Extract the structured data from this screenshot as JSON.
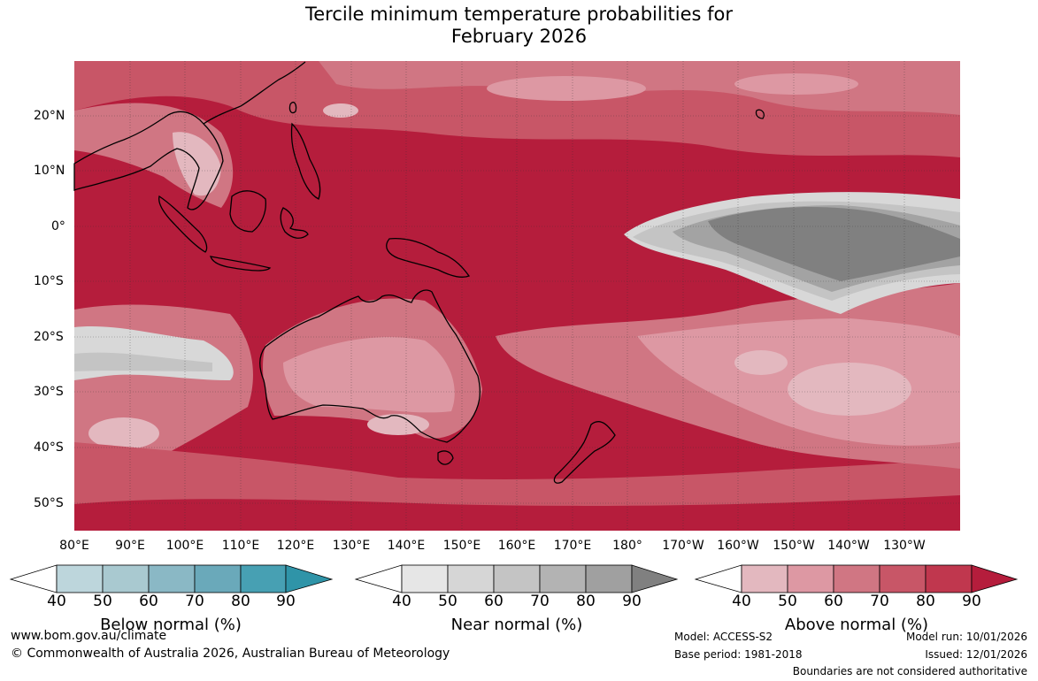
{
  "title_line1": "Tercile minimum temperature probabilities for",
  "title_line2": "February 2026",
  "map": {
    "longitude_labels": [
      "80°E",
      "90°E",
      "100°E",
      "110°E",
      "120°E",
      "130°E",
      "140°E",
      "150°E",
      "160°E",
      "170°E",
      "180°",
      "170°W",
      "160°W",
      "150°W",
      "140°W",
      "130°W"
    ],
    "latitude_labels": [
      "20°N",
      "10°N",
      "0°",
      "10°S",
      "20°S",
      "30°S",
      "40°S",
      "50°S"
    ],
    "colors": {
      "above_90": "#b51d3c",
      "above_80": "#c0374e",
      "above_70": "#c85667",
      "above_60": "#d07683",
      "above_50": "#dd98a3",
      "above_40": "#e3b8bf",
      "near_80": "#808080",
      "near_60": "#a3a3a3",
      "near_50": "#c4c4c4",
      "near_40": "#d8d8d8"
    }
  },
  "colorbars": [
    {
      "title": "Below normal (%)",
      "ticks": [
        "40",
        "50",
        "60",
        "70",
        "80",
        "90"
      ],
      "colors": [
        "#ffffff",
        "#bdd6dc",
        "#a9c9d0",
        "#8ab8c5",
        "#6aa9ba",
        "#47a0b3",
        "#2f94a8"
      ]
    },
    {
      "title": "Near normal (%)",
      "ticks": [
        "40",
        "50",
        "60",
        "70",
        "80",
        "90"
      ],
      "colors": [
        "#ffffff",
        "#e6e6e6",
        "#d6d6d6",
        "#c4c4c4",
        "#b3b3b3",
        "#a0a0a0",
        "#808080"
      ]
    },
    {
      "title": "Above normal (%)",
      "ticks": [
        "40",
        "50",
        "60",
        "70",
        "80",
        "90"
      ],
      "colors": [
        "#ffffff",
        "#e3b8bf",
        "#dd98a3",
        "#d07683",
        "#c85667",
        "#c0374e",
        "#b51d3c"
      ]
    }
  ],
  "footer": {
    "website": "www.bom.gov.au/climate",
    "copyright": "© Commonwealth of Australia 2026, Australian Bureau of Meteorology",
    "model": "Model: ACCESS-S2",
    "base_period": "Base period: 1981-2018",
    "model_run": "Model run: 10/01/2026",
    "issued": "Issued: 12/01/2026",
    "disclaimer": "Boundaries are not considered authoritative"
  }
}
